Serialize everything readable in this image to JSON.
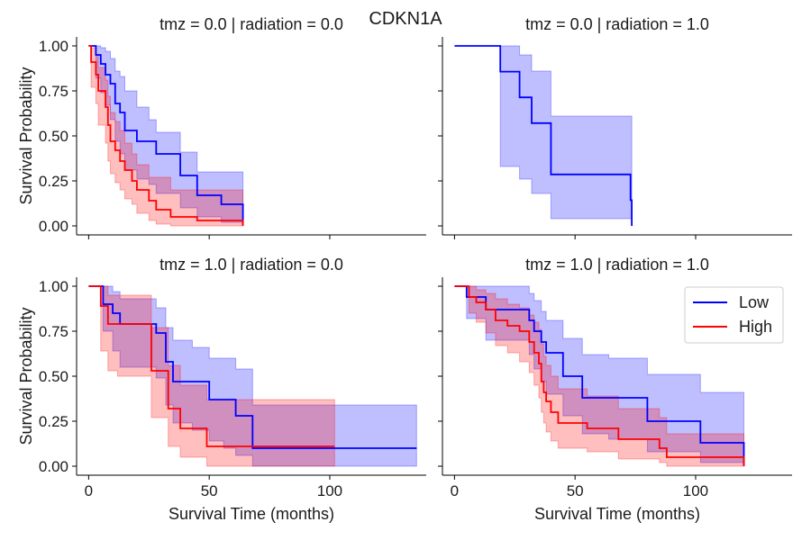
{
  "suptitle": "CDKN1A",
  "chart_data": {
    "type": "line",
    "subtype": "kaplan-meier survival step curves with confidence bands",
    "shared_axes": {
      "xlim": [
        -5,
        140
      ],
      "ylim": [
        -0.05,
        1.05
      ],
      "xticks": [
        0,
        50,
        100
      ],
      "xtick_labels": [
        "0",
        "50",
        "100"
      ],
      "yticks": [
        0,
        0.25,
        0.5,
        0.75,
        1.0
      ],
      "ytick_labels": [
        "0.00",
        "0.25",
        "0.50",
        "0.75",
        "1.00"
      ],
      "xlabel": "Survival Time (months)",
      "ylabel": "Survival Probability",
      "grid": false
    },
    "colors": {
      "Low": "#0000ff",
      "High": "#ff0000"
    },
    "legend": {
      "placement": "upper-right of bottom-right panel",
      "entries": [
        "Low",
        "High"
      ]
    },
    "panels": [
      {
        "title": "tmz = 0.0 | radiation = 0.0",
        "series": [
          {
            "name": "Low",
            "x": [
              0,
              3,
              5,
              7,
              9,
              11,
              13,
              15,
              20,
              25,
              28,
              38,
              45,
              55,
              64
            ],
            "y": [
              1.0,
              0.95,
              0.9,
              0.84,
              0.79,
              0.68,
              0.63,
              0.53,
              0.47,
              0.47,
              0.4,
              0.28,
              0.17,
              0.12,
              0.0
            ],
            "ci_low": [
              1.0,
              0.82,
              0.74,
              0.67,
              0.59,
              0.47,
              0.4,
              0.31,
              0.26,
              0.23,
              0.18,
              0.1,
              0.05,
              0.02,
              0.0
            ],
            "ci_high": [
              1.0,
              1.0,
              0.99,
              0.97,
              0.93,
              0.86,
              0.83,
              0.75,
              0.66,
              0.59,
              0.52,
              0.41,
              0.3,
              0.3,
              0.3
            ]
          },
          {
            "name": "High",
            "x": [
              0,
              1,
              3,
              4,
              7,
              8,
              9,
              11,
              13,
              15,
              18,
              20,
              25,
              28,
              34,
              45,
              64
            ],
            "y": [
              1.0,
              0.91,
              0.84,
              0.75,
              0.66,
              0.56,
              0.47,
              0.42,
              0.36,
              0.31,
              0.25,
              0.2,
              0.14,
              0.09,
              0.05,
              0.03,
              0.0
            ],
            "ci_low": [
              1.0,
              0.77,
              0.68,
              0.56,
              0.46,
              0.36,
              0.29,
              0.24,
              0.2,
              0.15,
              0.12,
              0.07,
              0.03,
              0.01,
              0.0,
              0.0,
              0.0
            ],
            "ci_high": [
              1.0,
              0.99,
              0.95,
              0.88,
              0.81,
              0.72,
              0.63,
              0.58,
              0.53,
              0.46,
              0.4,
              0.34,
              0.27,
              0.27,
              0.2,
              0.2,
              0.2
            ]
          }
        ]
      },
      {
        "title": "tmz = 0.0 | radiation = 1.0",
        "series": [
          {
            "name": "Low",
            "x": [
              0,
              19,
              27,
              32,
              40,
              73,
              73.5
            ],
            "y": [
              1.0,
              0.857,
              0.714,
              0.571,
              0.286,
              0.143,
              0.0
            ],
            "ci_low": [
              1.0,
              0.33,
              0.26,
              0.18,
              0.04,
              0.04,
              0.04
            ],
            "ci_high": [
              1.0,
              1.0,
              0.95,
              0.86,
              0.61,
              0.61,
              0.61
            ]
          }
        ]
      },
      {
        "title": "tmz = 1.0 | radiation = 0.0",
        "series": [
          {
            "name": "Low",
            "x": [
              0,
              6,
              10,
              13,
              26,
              28,
              32,
              35,
              43,
              50,
              56,
              61,
              68,
              136
            ],
            "y": [
              1.0,
              0.9,
              0.85,
              0.79,
              0.79,
              0.74,
              0.58,
              0.47,
              0.47,
              0.37,
              0.37,
              0.28,
              0.1,
              0.1
            ],
            "ci_low": [
              1.0,
              0.75,
              0.64,
              0.55,
              0.55,
              0.49,
              0.34,
              0.24,
              0.2,
              0.14,
              0.1,
              0.06,
              0.0,
              0.0
            ],
            "ci_high": [
              1.0,
              1.0,
              0.97,
              0.93,
              0.93,
              0.88,
              0.77,
              0.7,
              0.66,
              0.6,
              0.6,
              0.54,
              0.34,
              0.34
            ]
          },
          {
            "name": "High",
            "x": [
              0,
              5,
              8,
              12,
              26,
              33,
              38,
              49,
              102
            ],
            "y": [
              1.0,
              0.89,
              0.79,
              0.79,
              0.53,
              0.32,
              0.21,
              0.11,
              0.11
            ],
            "ci_low": [
              1.0,
              0.64,
              0.53,
              0.5,
              0.27,
              0.11,
              0.05,
              0.0,
              0.0
            ],
            "ci_high": [
              1.0,
              1.0,
              0.95,
              0.95,
              0.77,
              0.56,
              0.45,
              0.37,
              0.37
            ]
          }
        ]
      },
      {
        "title": "tmz = 1.0 | radiation = 1.0",
        "series": [
          {
            "name": "Low",
            "x": [
              0,
              5,
              13,
              31,
              33,
              36,
              38,
              45,
              53,
              64,
              80,
              102,
              120
            ],
            "y": [
              1.0,
              0.94,
              0.87,
              0.81,
              0.75,
              0.69,
              0.63,
              0.5,
              0.38,
              0.38,
              0.25,
              0.13,
              0.0
            ],
            "ci_low": [
              1.0,
              0.82,
              0.7,
              0.62,
              0.54,
              0.47,
              0.4,
              0.28,
              0.18,
              0.15,
              0.08,
              0.02,
              0.0
            ],
            "ci_high": [
              1.0,
              1.0,
              1.0,
              0.96,
              0.92,
              0.86,
              0.81,
              0.71,
              0.62,
              0.6,
              0.51,
              0.41,
              0.41
            ]
          },
          {
            "name": "High",
            "x": [
              0,
              6,
              9,
              13,
              17,
              22,
              27,
              31,
              33,
              35,
              36,
              37,
              38,
              40,
              43,
              55,
              68,
              85,
              88,
              120
            ],
            "y": [
              1.0,
              0.94,
              0.91,
              0.87,
              0.81,
              0.78,
              0.75,
              0.69,
              0.63,
              0.57,
              0.47,
              0.41,
              0.36,
              0.3,
              0.24,
              0.21,
              0.15,
              0.1,
              0.05,
              0.0
            ],
            "ci_low": [
              1.0,
              0.85,
              0.8,
              0.74,
              0.67,
              0.63,
              0.58,
              0.52,
              0.45,
              0.38,
              0.3,
              0.24,
              0.19,
              0.14,
              0.1,
              0.08,
              0.04,
              0.02,
              0.0,
              0.0
            ],
            "ci_high": [
              1.0,
              1.0,
              0.98,
              0.96,
              0.93,
              0.9,
              0.88,
              0.84,
              0.8,
              0.76,
              0.68,
              0.61,
              0.56,
              0.5,
              0.43,
              0.39,
              0.32,
              0.27,
              0.18,
              0.18
            ]
          }
        ]
      }
    ]
  }
}
